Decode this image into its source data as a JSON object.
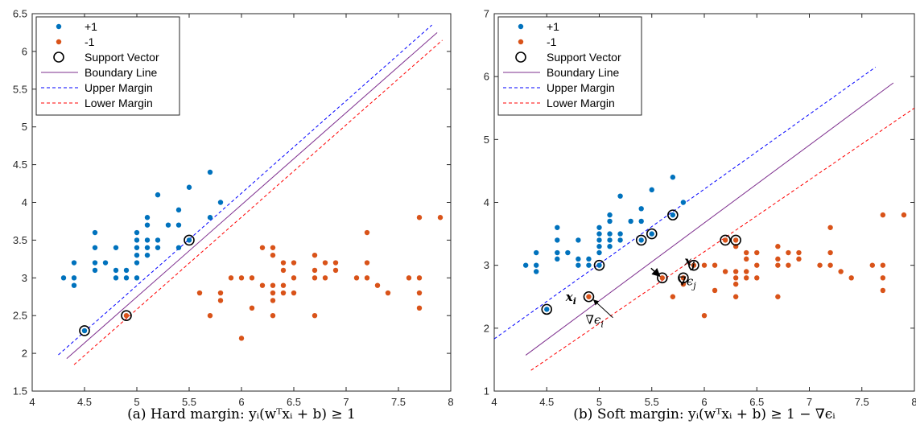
{
  "chart_data": [
    {
      "type": "scatter",
      "title": "",
      "xlabel": "",
      "ylabel": "",
      "xlim": [
        4,
        8
      ],
      "ylim": [
        1.5,
        6.5
      ],
      "xticks": [
        "4",
        "4.5",
        "5",
        "5.5",
        "6",
        "6.5",
        "7",
        "7.5",
        "8"
      ],
      "yticks": [
        "1.5",
        "2",
        "2.5",
        "3",
        "3.5",
        "4",
        "4.5",
        "5",
        "5.5",
        "6",
        "6.5"
      ],
      "caption": "(a) Hard margin: yᵢ(wᵀxᵢ + b) ≥ 1",
      "legend": {
        "position": "top-left",
        "entries": [
          "+1",
          "-1",
          "Support Vector",
          "Boundary Line",
          "Upper Margin",
          "Lower Margin"
        ]
      },
      "colors": {
        "pos": "#0072BD",
        "neg": "#D95319",
        "boundary": "#7E2F8E",
        "upper": "#0000FF",
        "lower": "#FF0000"
      },
      "series": [
        {
          "name": "+1",
          "points": [
            [
              4.3,
              3.0
            ],
            [
              4.4,
              3.2
            ],
            [
              4.4,
              3.0
            ],
            [
              4.4,
              2.9
            ],
            [
              4.5,
              2.3
            ],
            [
              4.6,
              3.6
            ],
            [
              4.6,
              3.4
            ],
            [
              4.6,
              3.2
            ],
            [
              4.6,
              3.1
            ],
            [
              4.7,
              3.2
            ],
            [
              4.8,
              3.4
            ],
            [
              4.8,
              3.1
            ],
            [
              4.8,
              3.0
            ],
            [
              4.9,
              3.1
            ],
            [
              4.9,
              3.0
            ],
            [
              5.0,
              3.6
            ],
            [
              5.0,
              3.5
            ],
            [
              5.0,
              3.4
            ],
            [
              5.0,
              3.3
            ],
            [
              5.0,
              3.2
            ],
            [
              5.0,
              3.0
            ],
            [
              5.1,
              3.8
            ],
            [
              5.1,
              3.7
            ],
            [
              5.1,
              3.5
            ],
            [
              5.1,
              3.4
            ],
            [
              5.1,
              3.3
            ],
            [
              5.2,
              4.1
            ],
            [
              5.2,
              3.5
            ],
            [
              5.2,
              3.4
            ],
            [
              5.3,
              3.7
            ],
            [
              5.4,
              3.9
            ],
            [
              5.4,
              3.7
            ],
            [
              5.4,
              3.4
            ],
            [
              5.5,
              4.2
            ],
            [
              5.5,
              3.5
            ],
            [
              5.7,
              4.4
            ],
            [
              5.7,
              3.8
            ],
            [
              5.8,
              4.0
            ]
          ]
        },
        {
          "name": "-1",
          "points": [
            [
              4.9,
              2.5
            ],
            [
              5.6,
              2.8
            ],
            [
              5.8,
              2.8
            ],
            [
              5.8,
              2.7
            ],
            [
              5.7,
              2.5
            ],
            [
              5.9,
              3.0
            ],
            [
              6.0,
              3.0
            ],
            [
              6.0,
              2.2
            ],
            [
              6.1,
              3.0
            ],
            [
              6.1,
              2.6
            ],
            [
              6.2,
              3.4
            ],
            [
              6.2,
              2.9
            ],
            [
              6.3,
              3.4
            ],
            [
              6.3,
              3.3
            ],
            [
              6.3,
              2.9
            ],
            [
              6.3,
              2.8
            ],
            [
              6.3,
              2.7
            ],
            [
              6.3,
              2.5
            ],
            [
              6.4,
              3.2
            ],
            [
              6.4,
              3.1
            ],
            [
              6.4,
              2.9
            ],
            [
              6.4,
              2.8
            ],
            [
              6.5,
              3.2
            ],
            [
              6.5,
              3.0
            ],
            [
              6.5,
              2.8
            ],
            [
              6.7,
              3.3
            ],
            [
              6.7,
              3.1
            ],
            [
              6.7,
              3.0
            ],
            [
              6.7,
              2.5
            ],
            [
              6.8,
              3.2
            ],
            [
              6.8,
              3.0
            ],
            [
              6.9,
              3.2
            ],
            [
              6.9,
              3.1
            ],
            [
              7.1,
              3.0
            ],
            [
              7.2,
              3.6
            ],
            [
              7.2,
              3.2
            ],
            [
              7.2,
              3.0
            ],
            [
              7.3,
              2.9
            ],
            [
              7.4,
              2.8
            ],
            [
              7.6,
              3.0
            ],
            [
              7.7,
              3.8
            ],
            [
              7.7,
              3.0
            ],
            [
              7.7,
              2.8
            ],
            [
              7.7,
              2.6
            ],
            [
              7.9,
              3.8
            ]
          ]
        },
        {
          "name": "Support Vector",
          "points": [
            [
              4.5,
              2.3
            ],
            [
              4.9,
              2.5
            ],
            [
              5.5,
              3.5
            ]
          ]
        },
        {
          "name": "Boundary Line",
          "points": [
            [
              4.33,
              1.93
            ],
            [
              7.87,
              6.25
            ]
          ]
        },
        {
          "name": "Upper Margin",
          "points": [
            [
              4.25,
              1.98
            ],
            [
              7.82,
              6.35
            ]
          ]
        },
        {
          "name": "Lower Margin",
          "points": [
            [
              4.4,
              1.85
            ],
            [
              7.92,
              6.15
            ]
          ]
        }
      ],
      "annotations": []
    },
    {
      "type": "scatter",
      "title": "",
      "xlabel": "",
      "ylabel": "",
      "xlim": [
        4,
        8
      ],
      "ylim": [
        1,
        7
      ],
      "xticks": [
        "4",
        "4.5",
        "5",
        "5.5",
        "6",
        "6.5",
        "7",
        "7.5",
        "8"
      ],
      "yticks": [
        "1",
        "2",
        "3",
        "4",
        "5",
        "6",
        "7"
      ],
      "caption": "(b) Soft margin: yᵢ(wᵀxᵢ + b) ≥ 1 − ∇ϵᵢ",
      "legend": {
        "position": "top-left",
        "entries": [
          "+1",
          "-1",
          "Support Vector",
          "Boundary Line",
          "Upper Margin",
          "Lower Margin"
        ]
      },
      "colors": {
        "pos": "#0072BD",
        "neg": "#D95319",
        "boundary": "#7E2F8E",
        "upper": "#0000FF",
        "lower": "#FF0000"
      },
      "series": [
        {
          "name": "+1",
          "points": [
            [
              4.3,
              3.0
            ],
            [
              4.4,
              3.2
            ],
            [
              4.4,
              3.0
            ],
            [
              4.4,
              2.9
            ],
            [
              4.5,
              2.3
            ],
            [
              4.6,
              3.6
            ],
            [
              4.6,
              3.4
            ],
            [
              4.6,
              3.2
            ],
            [
              4.6,
              3.1
            ],
            [
              4.7,
              3.2
            ],
            [
              4.8,
              3.4
            ],
            [
              4.8,
              3.1
            ],
            [
              4.8,
              3.0
            ],
            [
              4.9,
              3.1
            ],
            [
              4.9,
              3.0
            ],
            [
              5.0,
              3.6
            ],
            [
              5.0,
              3.5
            ],
            [
              5.0,
              3.4
            ],
            [
              5.0,
              3.3
            ],
            [
              5.0,
              3.2
            ],
            [
              5.0,
              3.0
            ],
            [
              5.1,
              3.8
            ],
            [
              5.1,
              3.7
            ],
            [
              5.1,
              3.5
            ],
            [
              5.1,
              3.4
            ],
            [
              5.1,
              3.3
            ],
            [
              5.2,
              4.1
            ],
            [
              5.2,
              3.5
            ],
            [
              5.2,
              3.4
            ],
            [
              5.3,
              3.7
            ],
            [
              5.4,
              3.9
            ],
            [
              5.4,
              3.7
            ],
            [
              5.4,
              3.4
            ],
            [
              5.5,
              4.2
            ],
            [
              5.5,
              3.5
            ],
            [
              5.7,
              4.4
            ],
            [
              5.7,
              3.8
            ],
            [
              5.8,
              4.0
            ]
          ]
        },
        {
          "name": "-1",
          "points": [
            [
              4.9,
              2.5
            ],
            [
              5.6,
              2.8
            ],
            [
              5.8,
              2.8
            ],
            [
              5.8,
              2.7
            ],
            [
              5.7,
              2.5
            ],
            [
              5.9,
              3.0
            ],
            [
              6.0,
              3.0
            ],
            [
              6.0,
              2.2
            ],
            [
              6.1,
              3.0
            ],
            [
              6.1,
              2.6
            ],
            [
              6.2,
              3.4
            ],
            [
              6.2,
              2.9
            ],
            [
              6.3,
              3.4
            ],
            [
              6.3,
              3.3
            ],
            [
              6.3,
              2.9
            ],
            [
              6.3,
              2.8
            ],
            [
              6.3,
              2.7
            ],
            [
              6.3,
              2.5
            ],
            [
              6.4,
              3.2
            ],
            [
              6.4,
              3.1
            ],
            [
              6.4,
              2.9
            ],
            [
              6.4,
              2.8
            ],
            [
              6.5,
              3.2
            ],
            [
              6.5,
              3.0
            ],
            [
              6.5,
              2.8
            ],
            [
              6.7,
              3.3
            ],
            [
              6.7,
              3.1
            ],
            [
              6.7,
              3.0
            ],
            [
              6.7,
              2.5
            ],
            [
              6.8,
              3.2
            ],
            [
              6.8,
              3.0
            ],
            [
              6.9,
              3.2
            ],
            [
              6.9,
              3.1
            ],
            [
              7.1,
              3.0
            ],
            [
              7.2,
              3.6
            ],
            [
              7.2,
              3.2
            ],
            [
              7.2,
              3.0
            ],
            [
              7.3,
              2.9
            ],
            [
              7.4,
              2.8
            ],
            [
              7.6,
              3.0
            ],
            [
              7.7,
              3.8
            ],
            [
              7.7,
              3.0
            ],
            [
              7.7,
              2.8
            ],
            [
              7.7,
              2.6
            ],
            [
              7.9,
              3.8
            ]
          ]
        },
        {
          "name": "Support Vector",
          "points": [
            [
              4.5,
              2.3
            ],
            [
              5.0,
              3.0
            ],
            [
              5.4,
              3.4
            ],
            [
              5.5,
              3.5
            ],
            [
              5.7,
              3.8
            ],
            [
              4.9,
              2.5
            ],
            [
              5.6,
              2.8
            ],
            [
              5.8,
              2.8
            ],
            [
              5.9,
              3.0
            ],
            [
              6.2,
              3.4
            ],
            [
              6.3,
              3.4
            ]
          ]
        },
        {
          "name": "Boundary Line",
          "points": [
            [
              4.3,
              1.57
            ],
            [
              7.8,
              5.9
            ]
          ]
        },
        {
          "name": "Upper Margin",
          "points": [
            [
              4.0,
              1.83
            ],
            [
              7.63,
              6.15
            ]
          ]
        },
        {
          "name": "Lower Margin",
          "points": [
            [
              4.35,
              1.33
            ],
            [
              8.0,
              5.5
            ]
          ]
        }
      ],
      "annotations": [
        {
          "text": "x",
          "sub": "i",
          "style": "bold",
          "x": 4.68,
          "y": 2.43
        },
        {
          "text": "x",
          "sub": "j",
          "style": "bold",
          "x": 5.81,
          "y": 3.0
        },
        {
          "text": "∇ϵ",
          "sub": "i",
          "style": "plain",
          "x": 4.87,
          "y": 2.07
        },
        {
          "text": "∇ϵ",
          "sub": "j",
          "style": "plain",
          "x": 5.75,
          "y": 2.68
        }
      ]
    }
  ]
}
